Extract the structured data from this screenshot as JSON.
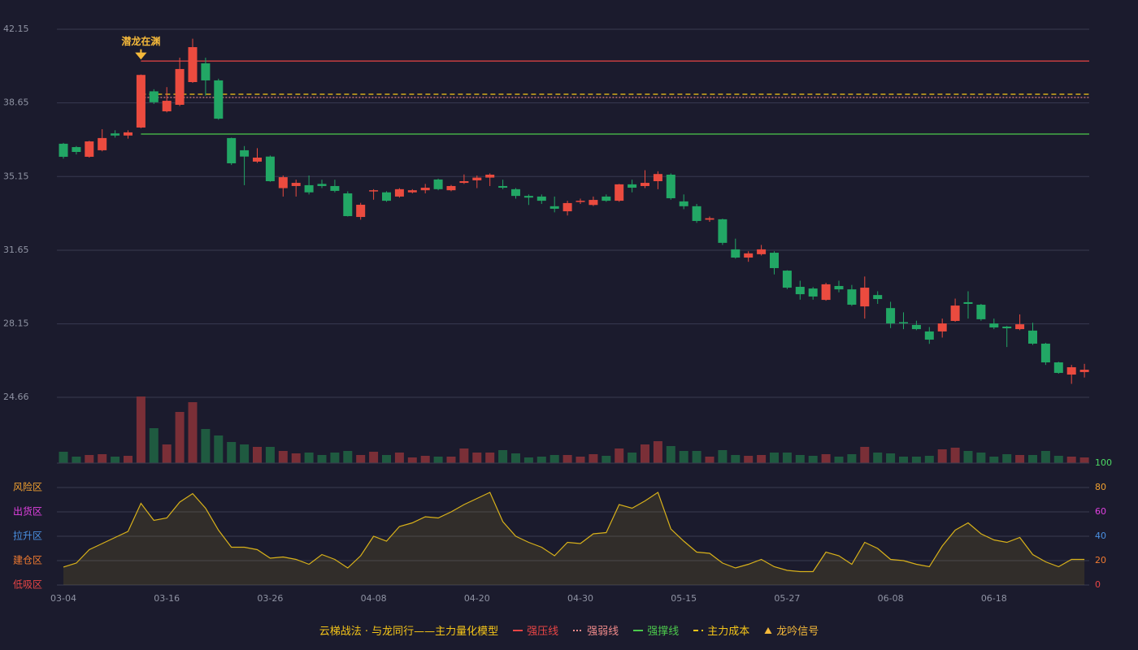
{
  "chart_data": [
    {
      "type": "candlestick",
      "categories": [
        "03-04",
        null,
        null,
        null,
        null,
        null,
        null,
        null,
        "03-16",
        null,
        null,
        null,
        null,
        null,
        null,
        null,
        "03-26",
        null,
        null,
        null,
        null,
        null,
        null,
        null,
        "04-08",
        null,
        null,
        null,
        null,
        null,
        null,
        null,
        "04-20",
        null,
        null,
        null,
        null,
        null,
        null,
        null,
        "04-30",
        null,
        null,
        null,
        null,
        null,
        null,
        null,
        "05-15",
        null,
        null,
        null,
        null,
        null,
        null,
        null,
        "05-27",
        null,
        null,
        null,
        null,
        null,
        null,
        null,
        "06-08",
        null,
        null,
        null,
        null,
        null,
        null,
        null,
        "06-18",
        null,
        null,
        null,
        null,
        null,
        null,
        null
      ],
      "open": [
        36.71,
        36.55,
        36.09,
        36.4,
        37.2,
        37.1,
        37.48,
        39.2,
        38.25,
        38.56,
        39.64,
        40.53,
        39.72,
        36.98,
        36.4,
        35.86,
        36.1,
        34.6,
        34.7,
        34.74,
        34.8,
        34.7,
        34.35,
        33.23,
        34.48,
        34.4,
        34.2,
        34.4,
        34.5,
        35.01,
        34.5,
        34.85,
        34.97,
        35.1,
        34.7,
        34.55,
        34.23,
        34.2,
        33.74,
        33.5,
        33.95,
        33.8,
        34.2,
        34.0,
        34.78,
        34.7,
        34.93,
        35.24,
        33.97,
        33.74,
        33.1,
        33.12,
        31.69,
        31.3,
        31.46,
        31.53,
        30.68,
        29.91,
        29.83,
        29.29,
        29.95,
        29.79,
        28.98,
        29.52,
        28.9,
        28.23,
        28.1,
        27.79,
        27.79,
        28.29,
        29.18,
        29.06,
        28.17,
        28.02,
        27.9,
        27.83,
        27.21,
        26.32,
        25.74,
        25.86
      ],
      "high": [
        36.75,
        36.6,
        36.85,
        37.4,
        37.35,
        37.35,
        40.0,
        39.3,
        39.4,
        40.8,
        41.7,
        40.8,
        39.8,
        37.0,
        36.6,
        36.5,
        36.15,
        35.2,
        35.0,
        35.2,
        35.0,
        35.0,
        34.45,
        33.9,
        34.55,
        34.45,
        34.6,
        34.55,
        34.8,
        35.05,
        34.75,
        35.25,
        35.2,
        35.3,
        35.0,
        34.6,
        34.3,
        34.3,
        34.2,
        34.0,
        34.1,
        34.2,
        34.3,
        34.8,
        35.0,
        35.45,
        35.4,
        35.3,
        34.3,
        33.85,
        33.25,
        33.15,
        32.2,
        31.6,
        31.9,
        31.6,
        30.7,
        30.2,
        29.9,
        30.1,
        30.2,
        30.0,
        30.4,
        29.7,
        29.2,
        28.7,
        28.3,
        28.0,
        28.4,
        29.35,
        29.7,
        29.1,
        28.4,
        28.05,
        28.6,
        28.2,
        27.25,
        26.35,
        26.2,
        26.25
      ],
      "low": [
        36.0,
        36.2,
        36.05,
        36.35,
        37.0,
        36.95,
        37.45,
        38.6,
        38.2,
        38.5,
        39.6,
        39.0,
        37.85,
        35.7,
        34.74,
        35.8,
        34.9,
        34.2,
        34.2,
        34.3,
        34.6,
        34.4,
        33.25,
        33.1,
        34.05,
        33.95,
        34.15,
        34.35,
        34.35,
        34.5,
        34.45,
        34.8,
        34.6,
        34.7,
        34.55,
        34.1,
        33.8,
        33.85,
        33.45,
        33.3,
        33.85,
        33.75,
        33.95,
        33.95,
        34.4,
        34.6,
        34.55,
        34.05,
        33.6,
        32.95,
        33.0,
        31.9,
        31.25,
        31.1,
        31.4,
        30.5,
        29.8,
        29.3,
        29.3,
        29.25,
        29.65,
        29.0,
        28.4,
        29.1,
        27.95,
        27.9,
        27.85,
        27.2,
        27.5,
        28.25,
        28.4,
        28.3,
        27.9,
        27.05,
        27.85,
        27.15,
        26.2,
        25.78,
        25.3,
        25.6
      ],
      "close": [
        36.09,
        36.32,
        36.82,
        36.98,
        37.1,
        37.25,
        39.98,
        38.68,
        38.75,
        40.26,
        41.3,
        39.72,
        37.9,
        35.78,
        36.1,
        36.05,
        34.93,
        35.12,
        34.85,
        34.4,
        34.7,
        34.47,
        33.27,
        33.81,
        34.5,
        34.0,
        34.55,
        34.5,
        34.62,
        34.55,
        34.7,
        34.93,
        35.1,
        35.24,
        34.62,
        34.23,
        34.15,
        34.0,
        33.62,
        33.89,
        34.0,
        34.04,
        34.0,
        34.78,
        34.62,
        34.85,
        35.27,
        34.12,
        33.74,
        33.04,
        33.17,
        32.0,
        31.3,
        31.5,
        31.69,
        30.8,
        29.87,
        29.56,
        29.45,
        30.03,
        29.79,
        29.06,
        29.87,
        29.33,
        28.17,
        28.2,
        27.9,
        27.4,
        28.17,
        29.02,
        29.1,
        28.37,
        27.98,
        27.94,
        28.13,
        27.21,
        26.32,
        25.82,
        26.09,
        25.97
      ],
      "up_color": "#eb4b3f",
      "down_color": "#22a765",
      "ylim": [
        24.66,
        42.15
      ],
      "yticks": [
        24.66,
        28.15,
        31.65,
        35.15,
        38.65,
        42.15
      ],
      "grid": true,
      "lines": [
        {
          "name": "强压线",
          "value": 40.64,
          "color": "#e84545",
          "style": "solid"
        },
        {
          "name": "强弱线",
          "value": 38.91,
          "color": "#f08a8a",
          "style": "dotted"
        },
        {
          "name": "强撑线",
          "value": 37.17,
          "color": "#4cc94c",
          "style": "solid"
        },
        {
          "name": "主力成本",
          "value": 39.06,
          "color": "#f5c518",
          "style": "dashed"
        }
      ],
      "annotations": [
        {
          "name": "龙吟信号",
          "text": "潜龙在渊",
          "index": 6,
          "color": "#f5b93a"
        }
      ]
    },
    {
      "type": "volume",
      "values": [
        14,
        8,
        10,
        11,
        8,
        9,
        82,
        43,
        23,
        63,
        75,
        42,
        34,
        26,
        23,
        20,
        20,
        15,
        12,
        13,
        10,
        13,
        15,
        10,
        14,
        10,
        13,
        7,
        9,
        8,
        8,
        18,
        13,
        13,
        16,
        12,
        7,
        8,
        10,
        10,
        8,
        11,
        9,
        18,
        13,
        23,
        27,
        21,
        15,
        15,
        8,
        16,
        10,
        9,
        10,
        13,
        13,
        10,
        9,
        11,
        8,
        11,
        20,
        13,
        12,
        8,
        8,
        9,
        17,
        19,
        15,
        13,
        8,
        11,
        10,
        10,
        15,
        9,
        8,
        7
      ],
      "up_color": "#7a2f37",
      "down_color": "#1f5a40"
    },
    {
      "type": "area",
      "values": [
        14.7,
        18,
        29,
        34,
        39,
        44,
        67,
        53,
        55,
        68,
        75,
        63,
        45,
        31,
        31,
        29,
        22,
        23,
        21,
        17,
        25,
        21,
        14,
        24,
        40,
        36,
        48,
        51,
        56,
        55,
        60,
        66,
        71,
        76,
        52,
        40,
        35,
        31,
        24,
        35,
        34,
        42,
        43,
        66,
        63,
        69,
        76,
        46,
        36,
        27,
        26,
        18,
        14,
        17,
        21,
        15,
        12,
        11,
        11,
        27,
        24,
        17,
        35,
        30,
        21,
        20,
        17,
        15,
        32,
        45,
        51,
        42,
        37,
        35,
        39,
        25,
        19,
        15,
        21,
        21
      ],
      "color": "#d8b11a",
      "ylim": [
        0,
        100
      ],
      "yticks": [
        0,
        20,
        40,
        60,
        80,
        100
      ],
      "ytick_colors": [
        "#e84545",
        "#f07a30",
        "#4a90e2",
        "#e040e0",
        "#f0a030",
        "#4cd964"
      ],
      "zones": [
        {
          "label": "风险区",
          "value": 80,
          "color": "#f0a030"
        },
        {
          "label": "出货区",
          "value": 60,
          "color": "#e040e0"
        },
        {
          "label": "拉升区",
          "value": 40,
          "color": "#4a90e2"
        },
        {
          "label": "建仓区",
          "value": 20,
          "color": "#f07a30"
        },
        {
          "label": "低吸区",
          "value": 0,
          "color": "#e84545"
        }
      ]
    }
  ],
  "legend_title": "云梯战法 · 与龙同行——主力量化模型"
}
